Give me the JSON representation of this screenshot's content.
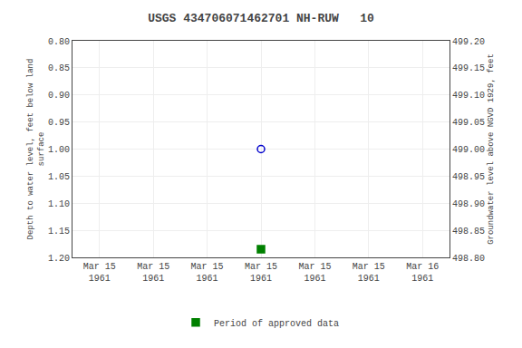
{
  "chart_data": {
    "type": "scatter",
    "title": "USGS 434706071462701 NH-RUW   10",
    "y_label": "Depth to water level, feet below land\nsurface",
    "y2_label": "Groundwater level above NGVD 1929, feet",
    "categories": [
      "Mar 15\n1961",
      "Mar 15\n1961",
      "Mar 15\n1961",
      "Mar 15\n1961",
      "Mar 15\n1961",
      "Mar 15\n1961",
      "Mar 16\n1961"
    ],
    "series": [
      {
        "color": "#0000cc",
        "marker": "open circle",
        "values": [
          null,
          null,
          null,
          1.0,
          null,
          null,
          null
        ]
      },
      {
        "name": "Period of approved data",
        "color": "#008000",
        "marker": "square",
        "values": [
          null,
          null,
          null,
          1.185,
          null,
          null,
          null
        ]
      }
    ],
    "ylim": [
      1.2,
      0.8
    ],
    "yticks": [
      {
        "value": 0.8,
        "label": "0.80"
      },
      {
        "value": 0.85,
        "label": "0.85"
      },
      {
        "value": 0.9,
        "label": "0.90"
      },
      {
        "value": 0.95,
        "label": "0.95"
      },
      {
        "value": 1.0,
        "label": "1.00"
      },
      {
        "value": 1.05,
        "label": "1.05"
      },
      {
        "value": 1.1,
        "label": "1.10"
      },
      {
        "value": 1.15,
        "label": "1.15"
      },
      {
        "value": 1.2,
        "label": "1.20"
      }
    ],
    "y2lim": [
      498.8,
      499.2
    ],
    "y2ticks": [
      {
        "value": 499.2,
        "label": "499.20"
      },
      {
        "value": 499.15,
        "label": "499.15"
      },
      {
        "value": 499.1,
        "label": "499.10"
      },
      {
        "value": 499.05,
        "label": "499.05"
      },
      {
        "value": 499.0,
        "label": "499.00"
      },
      {
        "value": 498.95,
        "label": "498.95"
      },
      {
        "value": 498.9,
        "label": "498.90"
      },
      {
        "value": 498.85,
        "label": "498.85"
      },
      {
        "value": 498.8,
        "label": "498.80"
      }
    ],
    "grid": true,
    "legend": "bottom"
  }
}
